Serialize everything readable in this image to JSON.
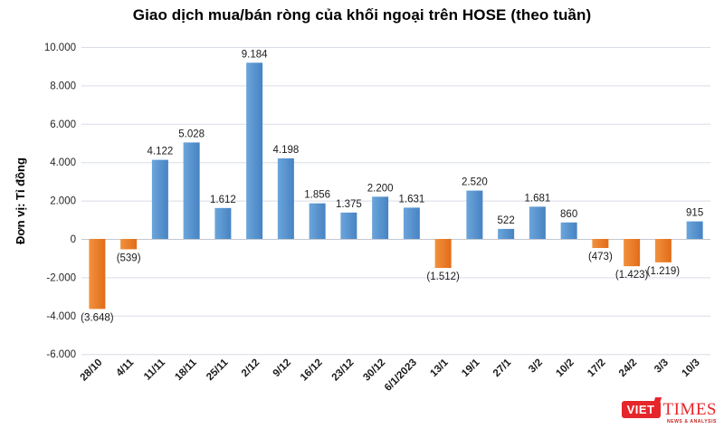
{
  "title": "Giao dịch mua/bán ròng của khối ngoại trên HOSE (theo tuần)",
  "y_axis_title": "Đơn vị: Tỉ đồng",
  "chart_data": {
    "type": "bar",
    "title": "Giao dịch mua/bán ròng của khối ngoại trên HOSE (theo tuần)",
    "xlabel": "",
    "ylabel": "Đơn vị: Tỉ đồng",
    "categories": [
      "28/10",
      "4/11",
      "11/11",
      "18/11",
      "25/11",
      "2/12",
      "9/12",
      "16/12",
      "23/12",
      "30/12",
      "6/1/2023",
      "13/1",
      "19/1",
      "27/1",
      "3/2",
      "10/2",
      "17/2",
      "24/2",
      "3/3",
      "10/3"
    ],
    "values": [
      -3648,
      -539,
      4122,
      5028,
      1612,
      9184,
      4198,
      1856,
      1375,
      2200,
      1631,
      -1512,
      2520,
      522,
      1681,
      860,
      -473,
      -1423,
      -1219,
      915
    ],
    "value_labels": [
      "(3.648)",
      "(539)",
      "4.122",
      "5.028",
      "1.612",
      "9.184",
      "4.198",
      "1.856",
      "1.375",
      "2.200",
      "1.631",
      "(1.512)",
      "2.520",
      "522",
      "1.681",
      "860",
      "(473)",
      "(1.423)",
      "(1.219)",
      "915"
    ],
    "y_ticks": {
      "values": [
        10000,
        8000,
        6000,
        4000,
        2000,
        0,
        -2000,
        -4000,
        -6000
      ],
      "labels": [
        "10.000",
        "8.000",
        "6.000",
        "4.000",
        "2.000",
        "0",
        "-2.000",
        "-4.000",
        "-6.000"
      ]
    },
    "ylim": [
      -6000,
      10000
    ],
    "grid": true,
    "legend": "none",
    "colors": {
      "positive_light": "#6ba5db",
      "positive_dark": "#4783c3",
      "negative_light": "#f2913e",
      "negative_dark": "#e16c19"
    }
  },
  "logo": {
    "viet": "VIET",
    "times": "TIMES",
    "tagline": "NEWS & ANALYSIS"
  }
}
